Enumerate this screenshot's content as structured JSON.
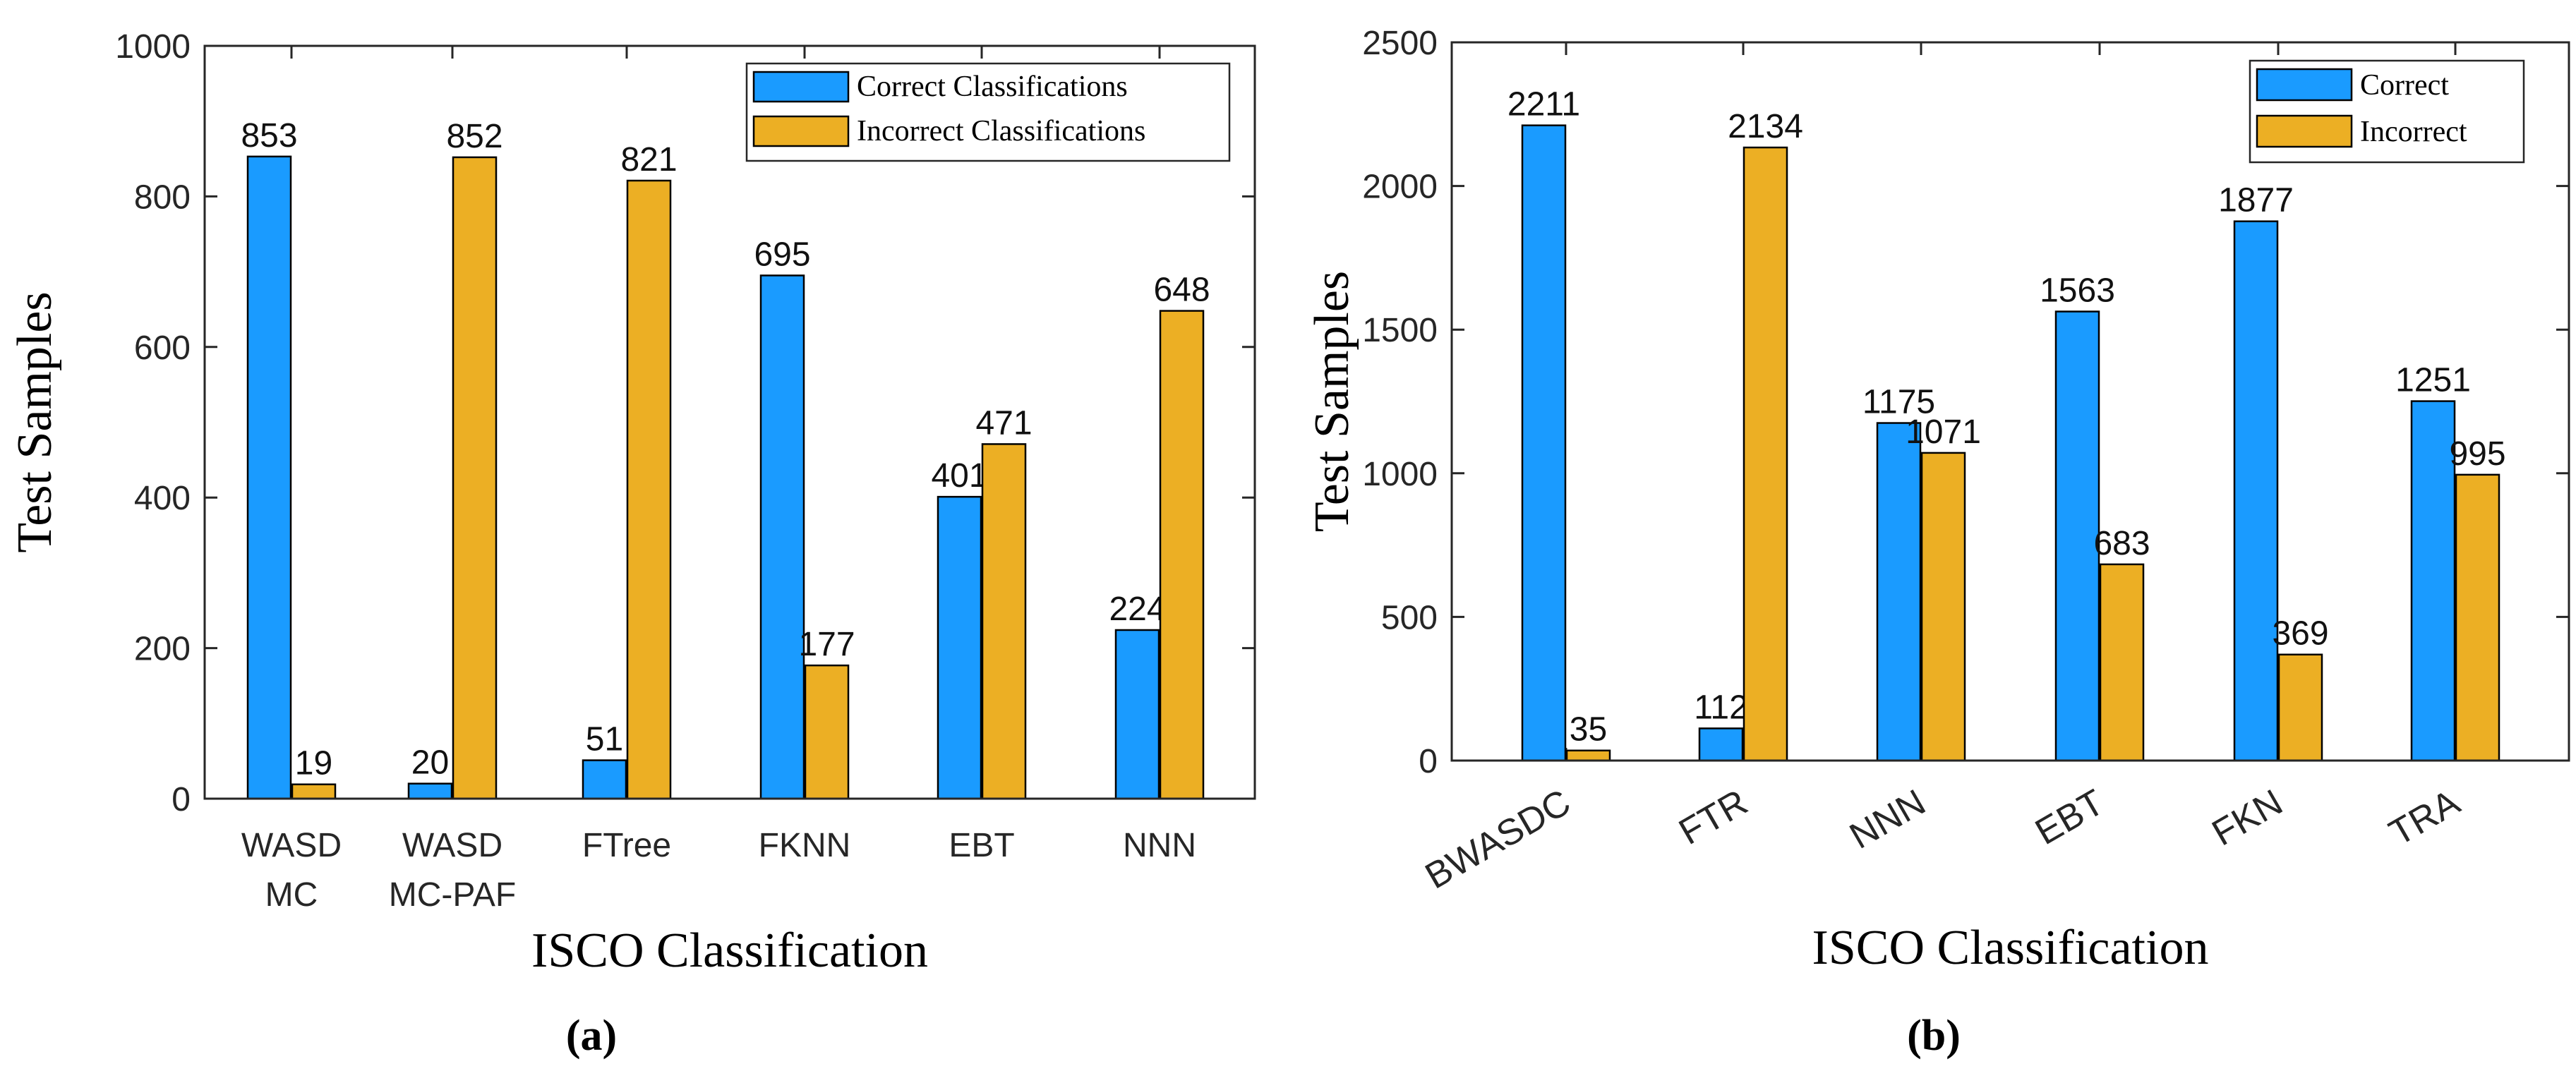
{
  "colors": {
    "correct": "#1a9bff",
    "incorrect": "#ecaf24",
    "axis": "#262626",
    "bar_edge": "#000000"
  },
  "chart_data": [
    {
      "type": "bar",
      "panel_label": "(a)",
      "xlabel": "ISCO Classification",
      "ylabel": "Test Samples",
      "ylim": [
        0,
        1000
      ],
      "yticks": [
        0,
        200,
        400,
        600,
        800,
        1000
      ],
      "categories": [
        [
          "WASD",
          "MC"
        ],
        [
          "WASD",
          "MC-PAF"
        ],
        [
          "FTree"
        ],
        [
          "FKNN"
        ],
        [
          "EBT"
        ],
        [
          "NNN"
        ]
      ],
      "series": [
        {
          "name": "Correct Classifications",
          "color_key": "correct",
          "values": [
            853,
            20,
            51,
            695,
            401,
            224
          ]
        },
        {
          "name": "Incorrect Classifications",
          "color_key": "incorrect",
          "values": [
            19,
            852,
            821,
            177,
            471,
            648
          ]
        }
      ],
      "legend_position": "top-right",
      "rotate_xticks": false
    },
    {
      "type": "bar",
      "panel_label": "(b)",
      "xlabel": "ISCO Classification",
      "ylabel": "Test Samples",
      "ylim": [
        0,
        2500
      ],
      "yticks": [
        0,
        500,
        1000,
        1500,
        2000,
        2500
      ],
      "categories": [
        [
          "BWASDC"
        ],
        [
          "FTR"
        ],
        [
          "NNN"
        ],
        [
          "EBT"
        ],
        [
          "FKN"
        ],
        [
          "TRA"
        ]
      ],
      "series": [
        {
          "name": "Correct",
          "color_key": "correct",
          "values": [
            2211,
            112,
            1175,
            1563,
            1877,
            1251
          ]
        },
        {
          "name": "Incorrect",
          "color_key": "incorrect",
          "values": [
            35,
            2134,
            1071,
            683,
            369,
            995
          ]
        }
      ],
      "legend_position": "top-right",
      "rotate_xticks": true
    }
  ]
}
